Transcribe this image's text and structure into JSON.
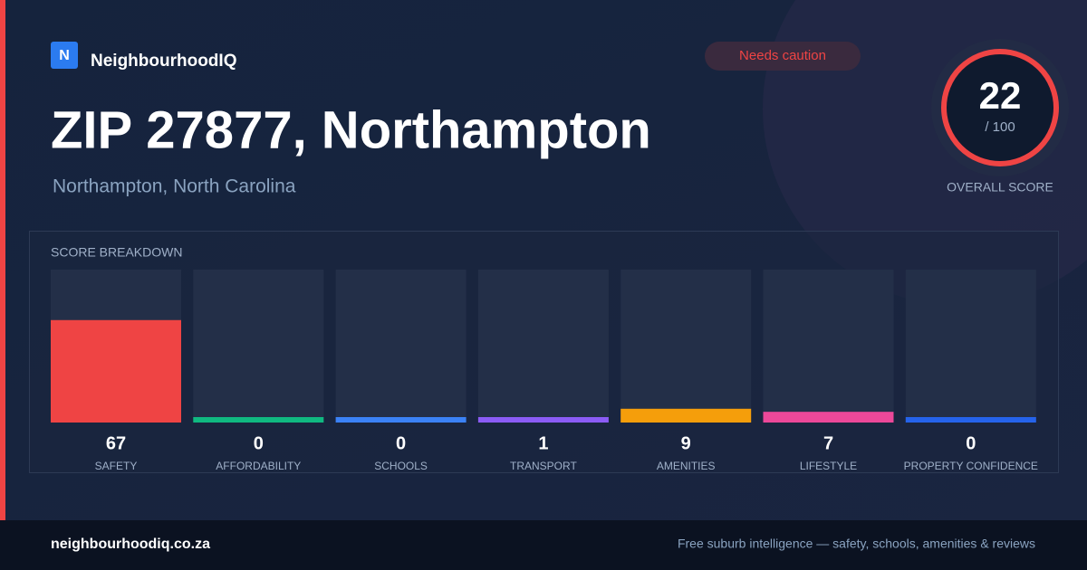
{
  "brand": {
    "logo": "N",
    "name": "NeighbourhoodIQ"
  },
  "badge": "Needs caution",
  "title": "ZIP 27877, Northampton",
  "subtitle": "Northampton, North Carolina",
  "overall": {
    "score": 22,
    "out_of": {
      "value": 100,
      "label": "/ 100"
    },
    "label": "OVERALL SCORE"
  },
  "breakdown": {
    "heading": "SCORE BREAKDOWN",
    "items": [
      {
        "label": "SAFETY",
        "value": 67,
        "color": "#ef4444"
      },
      {
        "label": "AFFORDABILITY",
        "value": 0,
        "color": "#10b981"
      },
      {
        "label": "SCHOOLS",
        "value": 0,
        "color": "#3b82f6"
      },
      {
        "label": "TRANSPORT",
        "value": 1,
        "color": "#8b5cf6"
      },
      {
        "label": "AMENITIES",
        "value": 9,
        "color": "#f59e0b"
      },
      {
        "label": "LIFESTYLE",
        "value": 7,
        "color": "#ec4899"
      },
      {
        "label": "PROPERTY CONFIDENCE",
        "value": 0,
        "color": "#2563eb"
      }
    ]
  },
  "footer": {
    "site": "neighbourhoodiq.co.za",
    "tagline": "Free suburb intelligence — safety, schools, amenities & reviews"
  }
}
